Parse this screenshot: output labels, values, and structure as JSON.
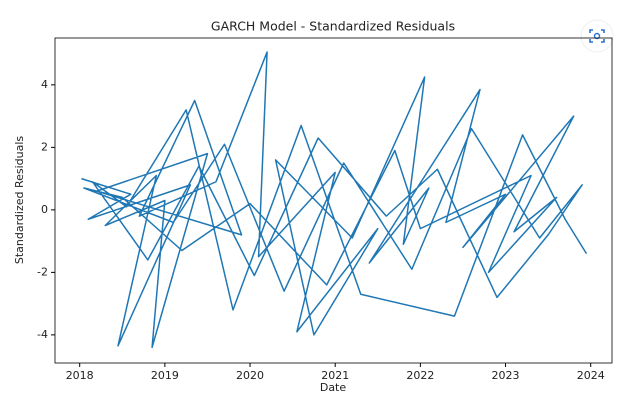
{
  "chart_data": {
    "type": "line",
    "title": "GARCH Model - Standardized Residuals",
    "x_label": "Date",
    "y_label": "Standardized Residuals",
    "x": [
      2018.02,
      2018.6,
      2018.1,
      2019.3,
      2018.45,
      2018.9,
      2018.3,
      2019.0,
      2018.85,
      2019.5,
      2018.2,
      2019.9,
      2019.35,
      2018.7,
      2019.6,
      2020.2,
      2020.1,
      2021.0,
      2020.55,
      2021.5,
      2020.75,
      2020.3,
      2021.2,
      2022.05,
      2021.8,
      2022.1,
      2021.4,
      2022.7,
      2022.3,
      2023.0,
      2022.5,
      2023.8,
      2023.1,
      2023.6,
      2022.8,
      2023.3,
      2022.0,
      2021.7,
      2020.9,
      2020.0,
      2019.2,
      2018.5,
      2018.05,
      2019.1,
      2019.7,
      2020.4,
      2021.1,
      2021.9,
      2022.6,
      2023.4,
      2023.9,
      2023.5,
      2022.9,
      2022.2,
      2021.6,
      2020.8,
      2020.05,
      2019.4,
      2018.8,
      2018.15,
      2018.55,
      2019.25,
      2019.8,
      2020.6,
      2021.3,
      2022.4,
      2023.2,
      2023.7,
      2023.95
    ],
    "series": [
      {
        "color": "#1f77b4",
        "values": [
          1.0,
          0.5,
          -0.3,
          0.8,
          -4.35,
          1.1,
          -0.5,
          0.3,
          -4.4,
          1.8,
          0.6,
          -0.8,
          3.5,
          -0.2,
          0.9,
          5.05,
          -1.5,
          1.2,
          -3.9,
          -0.6,
          -4.0,
          1.6,
          -0.9,
          4.25,
          -1.1,
          0.7,
          -1.7,
          3.85,
          -0.4,
          0.5,
          -1.2,
          3.0,
          -0.7,
          0.4,
          -2.0,
          1.1,
          -0.6,
          1.9,
          -2.4,
          0.2,
          -1.3,
          0.4,
          0.7,
          -0.4,
          2.1,
          -2.6,
          1.5,
          -1.9,
          2.6,
          -0.9,
          0.8,
          -0.8,
          -2.8,
          1.3,
          -0.2,
          2.3,
          -2.1,
          1.4,
          -1.6,
          0.9,
          0.1,
          3.2,
          -3.2,
          2.7,
          -2.7,
          -3.4,
          2.4,
          -0.3,
          -1.4
        ]
      }
    ],
    "xlim": [
      2017.71,
      2024.25
    ],
    "xticks": [
      2018,
      2019,
      2020,
      2021,
      2022,
      2023,
      2024
    ],
    "ylim": [
      -4.9,
      5.5
    ],
    "yticks": [
      -4,
      -2,
      0,
      2,
      4
    ]
  }
}
